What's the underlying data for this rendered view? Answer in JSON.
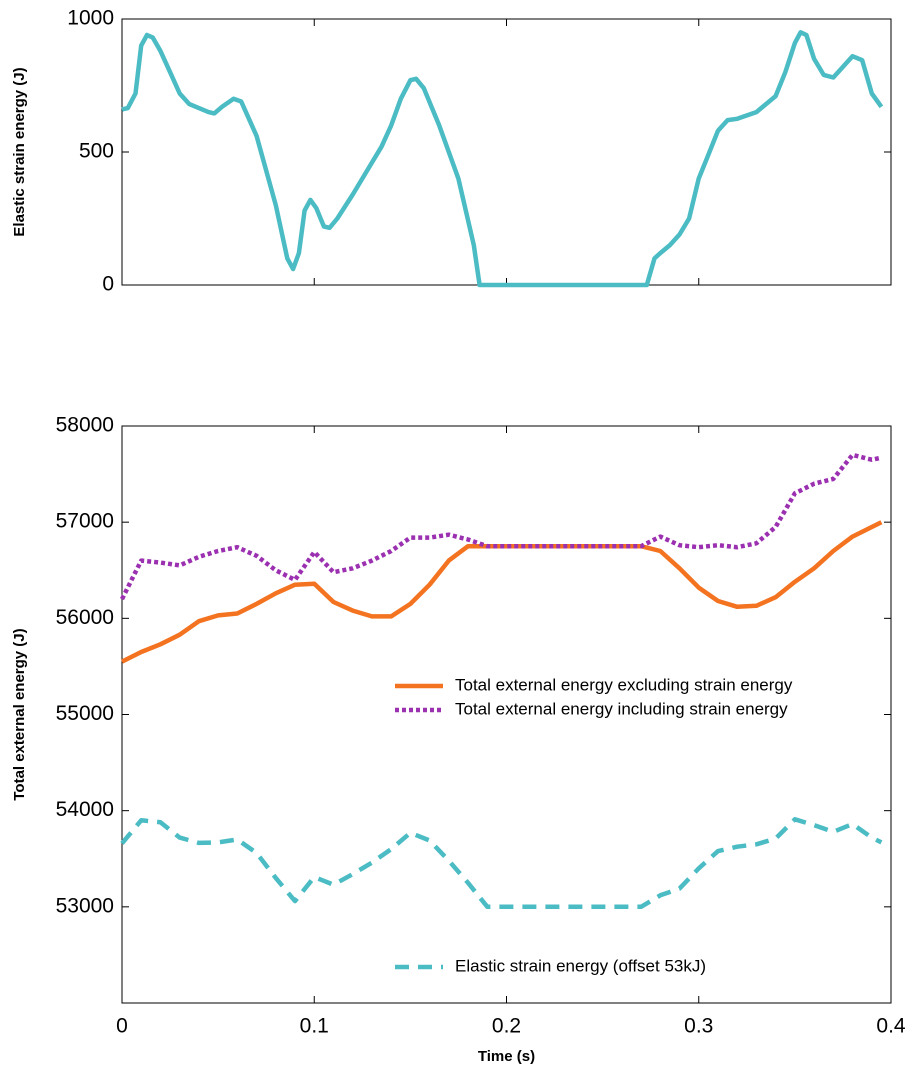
{
  "chart_data": [
    {
      "type": "line",
      "ylabel": "Elastic strain energy (J)",
      "x": [
        0,
        0.003,
        0.007,
        0.01,
        0.013,
        0.016,
        0.02,
        0.025,
        0.03,
        0.035,
        0.04,
        0.045,
        0.048,
        0.052,
        0.058,
        0.062,
        0.07,
        0.08,
        0.086,
        0.089,
        0.092,
        0.095,
        0.098,
        0.101,
        0.105,
        0.108,
        0.112,
        0.12,
        0.13,
        0.135,
        0.14,
        0.145,
        0.15,
        0.153,
        0.157,
        0.165,
        0.175,
        0.183,
        0.186,
        0.2,
        0.22,
        0.24,
        0.26,
        0.273,
        0.277,
        0.28,
        0.285,
        0.29,
        0.295,
        0.3,
        0.305,
        0.31,
        0.315,
        0.32,
        0.33,
        0.34,
        0.345,
        0.35,
        0.353,
        0.356,
        0.36,
        0.365,
        0.37,
        0.375,
        0.38,
        0.385,
        0.39,
        0.395
      ],
      "series": [
        {
          "name": "Elastic strain energy",
          "color": "#4bbcc4",
          "dash": "solid",
          "values": [
            660,
            665,
            720,
            900,
            940,
            930,
            880,
            800,
            720,
            680,
            665,
            650,
            645,
            670,
            700,
            690,
            560,
            300,
            100,
            60,
            120,
            280,
            320,
            290,
            220,
            215,
            250,
            340,
            460,
            520,
            600,
            700,
            770,
            775,
            740,
            600,
            400,
            150,
            0,
            0,
            0,
            0,
            0,
            0,
            100,
            120,
            150,
            190,
            250,
            400,
            490,
            580,
            620,
            625,
            650,
            710,
            800,
            910,
            950,
            940,
            850,
            790,
            780,
            820,
            860,
            845,
            720,
            670
          ]
        }
      ],
      "xlim": [
        0,
        0.4
      ],
      "xticks": [
        0.1,
        0.2,
        0.3
      ],
      "show_xtick_labels": false,
      "ylim": [
        0,
        1000
      ],
      "yticks": [
        0,
        500,
        1000
      ]
    },
    {
      "type": "line",
      "xlabel": "Time (s)",
      "ylabel": "Total external  energy (J)",
      "x": [
        0,
        0.01,
        0.02,
        0.03,
        0.04,
        0.05,
        0.06,
        0.07,
        0.08,
        0.09,
        0.1,
        0.11,
        0.12,
        0.13,
        0.14,
        0.15,
        0.16,
        0.17,
        0.18,
        0.19,
        0.2,
        0.21,
        0.22,
        0.23,
        0.24,
        0.25,
        0.26,
        0.27,
        0.28,
        0.29,
        0.3,
        0.31,
        0.32,
        0.33,
        0.34,
        0.35,
        0.36,
        0.37,
        0.38,
        0.39,
        0.395
      ],
      "series": [
        {
          "name": "Total external energy excluding strain energy",
          "color": "#f47320",
          "dash": "solid",
          "values": [
            55550,
            55650,
            55730,
            55830,
            55970,
            56030,
            56050,
            56150,
            56260,
            56350,
            56360,
            56170,
            56080,
            56020,
            56020,
            56150,
            56350,
            56600,
            56750,
            56750,
            56750,
            56750,
            56750,
            56750,
            56750,
            56750,
            56750,
            56750,
            56700,
            56520,
            56320,
            56180,
            56120,
            56130,
            56220,
            56380,
            56520,
            56700,
            56850,
            56950,
            57000
          ]
        },
        {
          "name": "Total external energy including strain energy",
          "color": "#9b30b0",
          "dash": "dotted",
          "values": [
            56200,
            56600,
            56580,
            56550,
            56640,
            56700,
            56740,
            56650,
            56500,
            56400,
            56690,
            56480,
            56520,
            56600,
            56700,
            56840,
            56840,
            56870,
            56820,
            56750,
            56750,
            56750,
            56750,
            56750,
            56750,
            56750,
            56750,
            56750,
            56850,
            56760,
            56740,
            56760,
            56740,
            56780,
            56950,
            57300,
            57400,
            57450,
            57700,
            57650,
            57670
          ]
        },
        {
          "name": "Elastic strain energy (offset 53kJ)",
          "color": "#4bbcc4",
          "dash": "dashed",
          "values": [
            53660,
            53900,
            53880,
            53720,
            53665,
            53670,
            53700,
            53560,
            53300,
            53060,
            53310,
            53230,
            53340,
            53460,
            53600,
            53770,
            53690,
            53480,
            53250,
            53000,
            53000,
            53000,
            53000,
            53000,
            53000,
            53000,
            53000,
            53000,
            53120,
            53190,
            53400,
            53580,
            53625,
            53650,
            53710,
            53910,
            53850,
            53780,
            53860,
            53720,
            53670
          ]
        }
      ],
      "xlim": [
        0,
        0.4
      ],
      "xticks": [
        0,
        0.1,
        0.2,
        0.3,
        0.4
      ],
      "show_xtick_labels": true,
      "ylim": [
        52000,
        58000
      ],
      "yticks": [
        53000,
        54000,
        55000,
        56000,
        57000,
        58000
      ]
    }
  ]
}
